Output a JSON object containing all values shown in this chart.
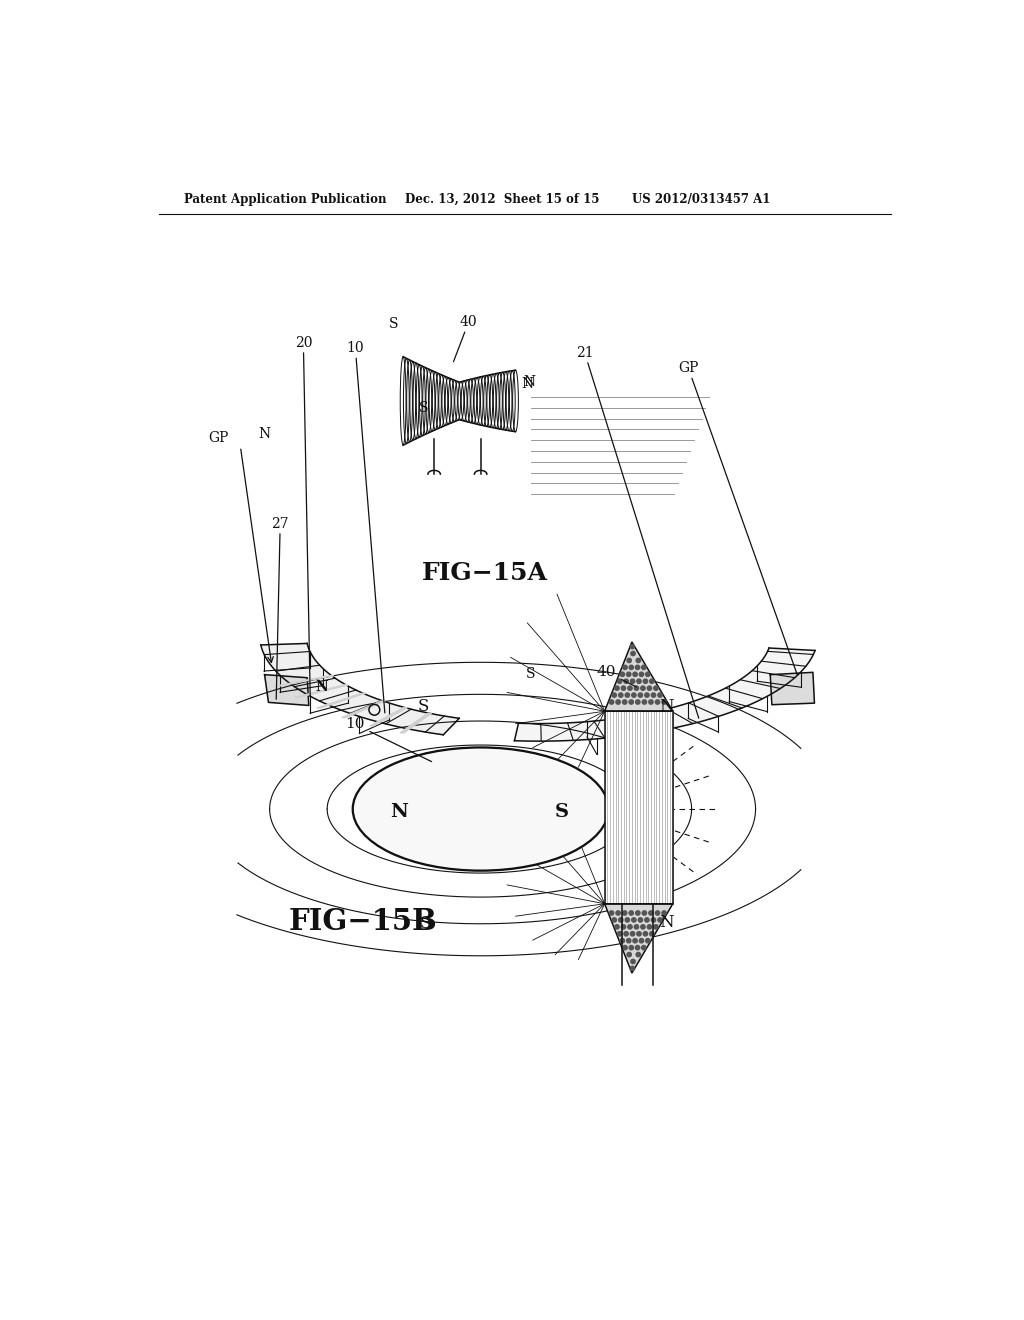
{
  "bg_color": "#ffffff",
  "header_left": "Patent Application Publication",
  "header_mid": "Dec. 13, 2012  Sheet 15 of 15",
  "header_right": "US 2012/0313457 A1",
  "fig15a_label": "FIG−15A",
  "fig15b_label": "FIG−15B"
}
